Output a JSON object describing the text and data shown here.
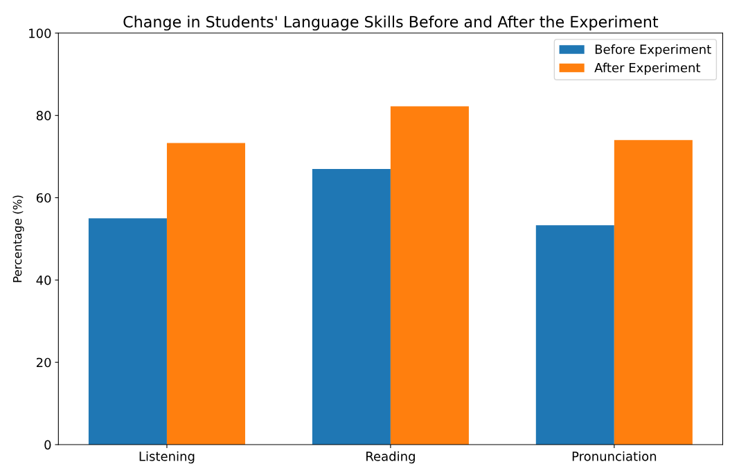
{
  "chart_data": {
    "type": "bar",
    "title": "Change in Students' Language Skills Before and After the Experiment",
    "ylabel": "Percentage (%)",
    "categories": [
      "Listening",
      "Reading",
      "Pronunciation"
    ],
    "series": [
      {
        "name": "Before Experiment",
        "color": "#1f77b4",
        "values": [
          55,
          67,
          53.3
        ]
      },
      {
        "name": "After Experiment",
        "color": "#ff7f0e",
        "values": [
          73.3,
          82.2,
          74
        ]
      }
    ],
    "ylim": [
      0,
      100
    ],
    "yticks": [
      0,
      20,
      40,
      60,
      80,
      100
    ],
    "grid": false,
    "legend": "top right"
  }
}
